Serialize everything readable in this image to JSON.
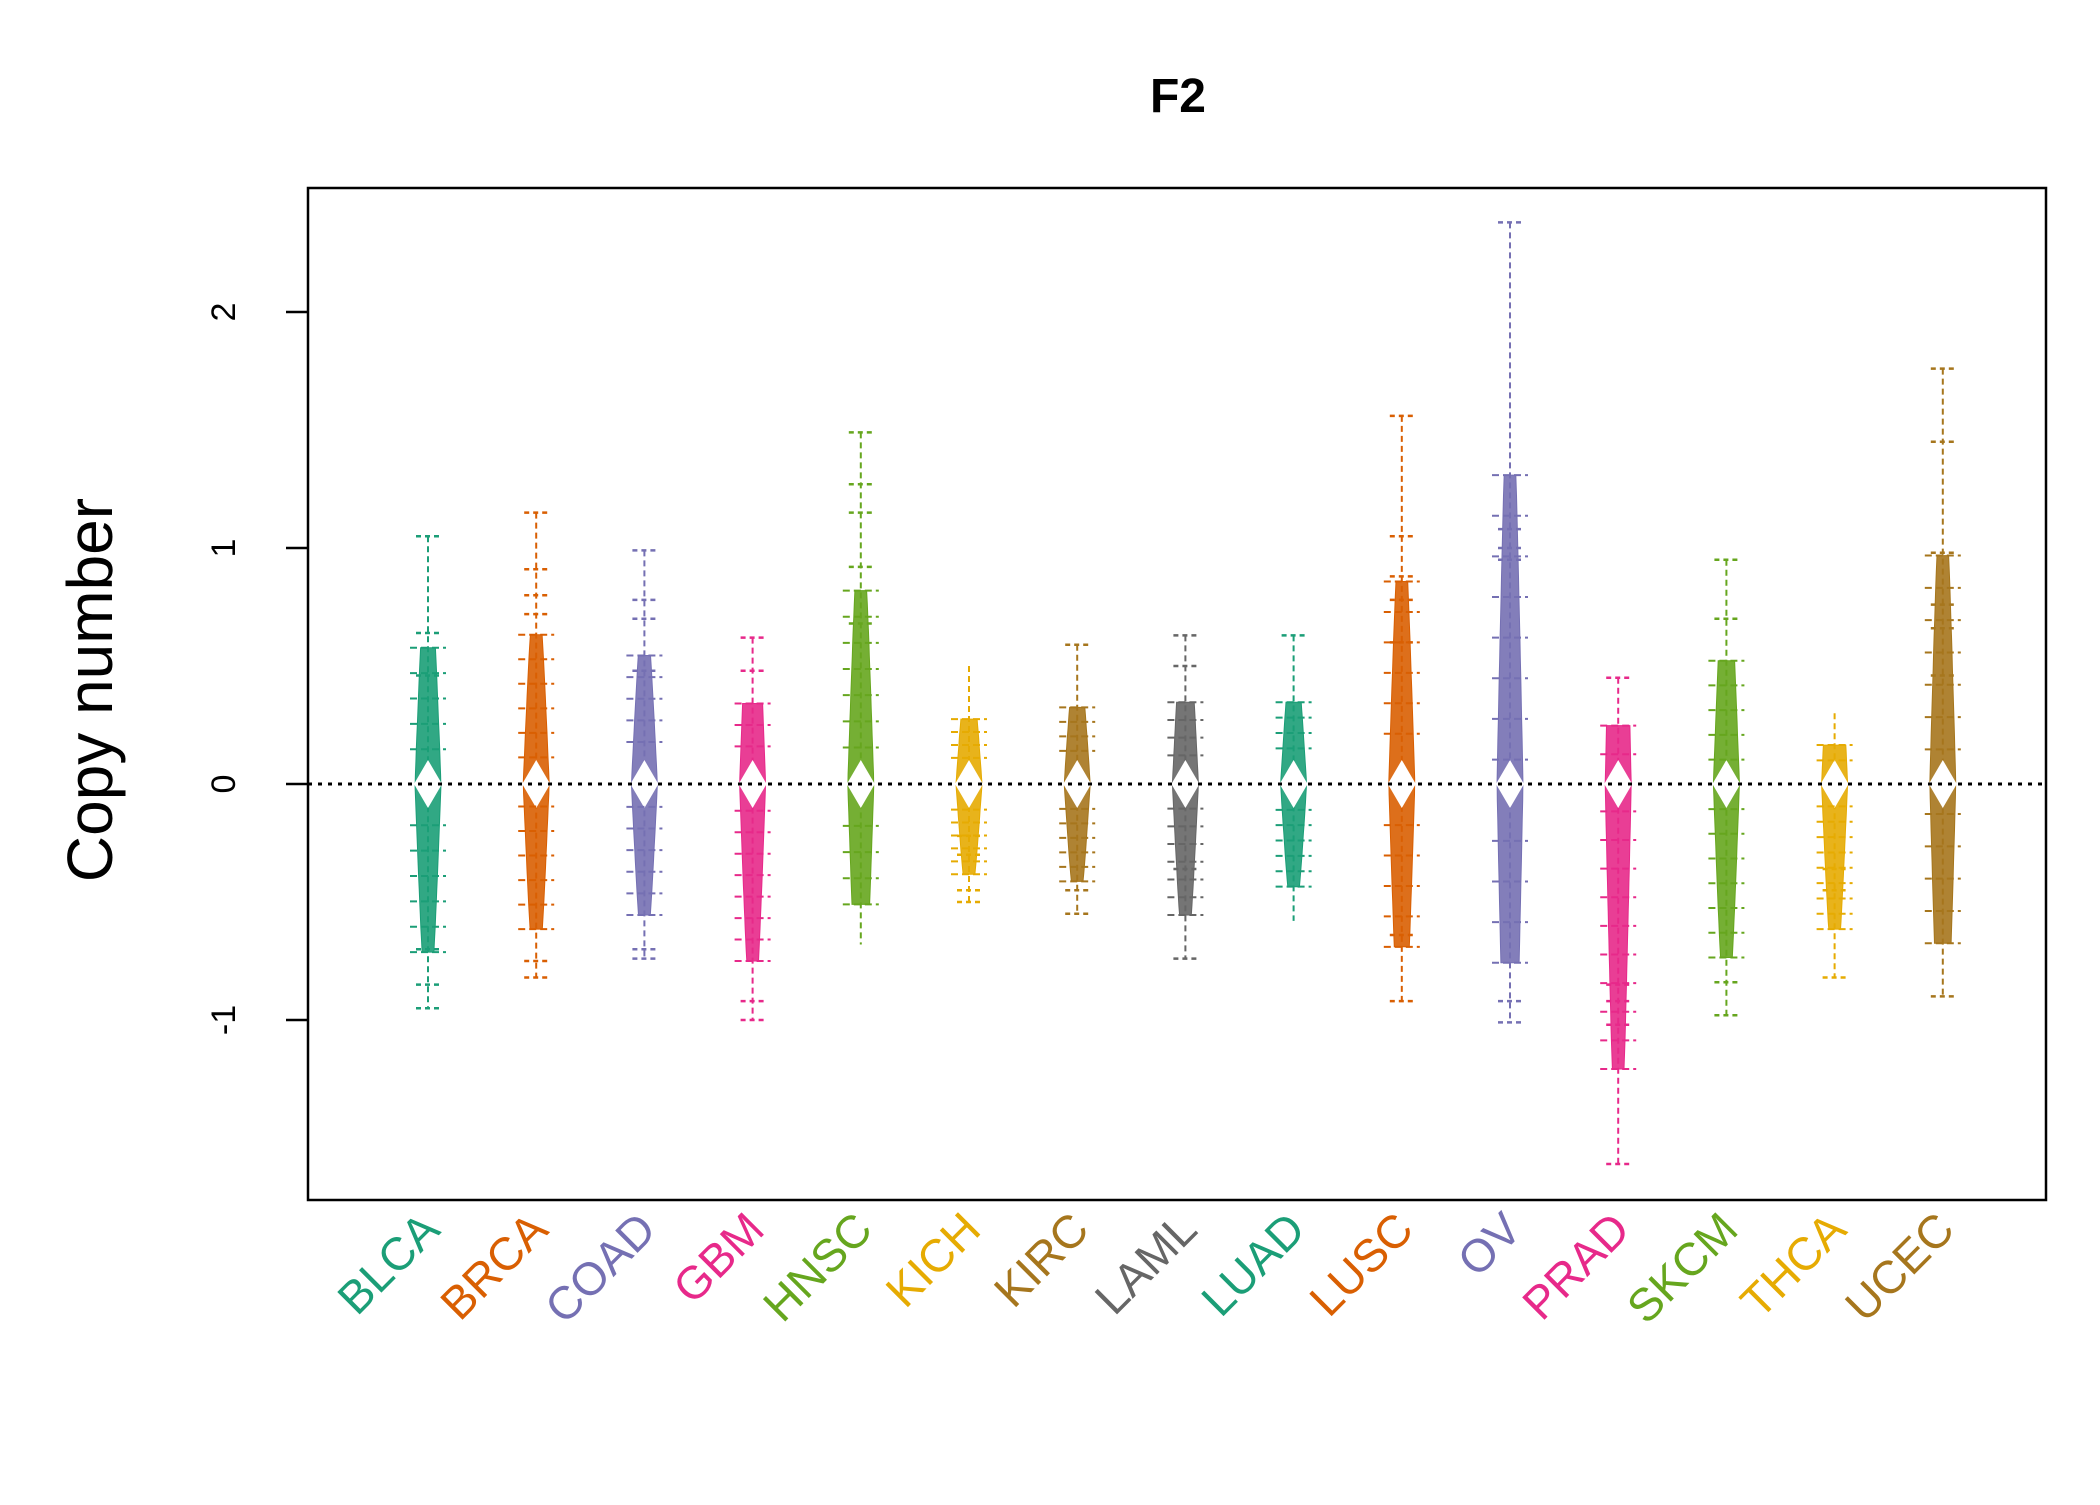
{
  "chart_data": {
    "type": "beanplot",
    "title": "F2",
    "xlabel": "",
    "ylabel": "Copy number",
    "ylim": [
      -1.75,
      2.55
    ],
    "yticks": [
      -1,
      0,
      1,
      2
    ],
    "ytick_labels": [
      "-1",
      "0",
      "1",
      "2"
    ],
    "reference_line": 0,
    "grid": false,
    "legend": "none",
    "categories": [
      "BLCA",
      "BRCA",
      "COAD",
      "GBM",
      "HNSC",
      "KICH",
      "KIRC",
      "LAML",
      "LUAD",
      "LUSC",
      "OV",
      "PRAD",
      "SKCM",
      "THCA",
      "UCEC"
    ],
    "colors": [
      "#1B9E77",
      "#D95F02",
      "#7570B3",
      "#E7298A",
      "#66A61E",
      "#E6AB02",
      "#A6761D",
      "#666666",
      "#1B9E77",
      "#D95F02",
      "#7570B3",
      "#E7298A",
      "#66A61E",
      "#E6AB02",
      "#A6761D"
    ],
    "series": [
      {
        "name": "BLCA",
        "min": -0.95,
        "max": 1.05,
        "outliers": [
          1.05,
          0.64,
          0.46,
          -0.7,
          -0.85,
          -0.95
        ]
      },
      {
        "name": "BRCA",
        "min": -0.82,
        "max": 1.15,
        "outliers": [
          1.15,
          0.91,
          0.8,
          0.72,
          -0.75,
          -0.82
        ]
      },
      {
        "name": "COAD",
        "min": -0.74,
        "max": 0.99,
        "outliers": [
          0.99,
          0.78,
          0.7,
          0.48,
          -0.7,
          -0.74
        ]
      },
      {
        "name": "GBM",
        "min": -1.0,
        "max": 0.62,
        "outliers": [
          0.62,
          0.48,
          -0.92,
          -1.0
        ]
      },
      {
        "name": "HNSC",
        "min": -0.68,
        "max": 1.49,
        "outliers": [
          1.49,
          1.27,
          1.15,
          0.92,
          0.68
        ]
      },
      {
        "name": "KICH",
        "min": -0.51,
        "max": 0.5,
        "outliers": [
          -0.22,
          -0.3,
          -0.45,
          -0.5
        ]
      },
      {
        "name": "KIRC",
        "min": -0.55,
        "max": 0.59,
        "outliers": [
          0.59,
          -0.45,
          -0.55
        ]
      },
      {
        "name": "LAML",
        "min": -0.74,
        "max": 0.63,
        "outliers": [
          0.63,
          0.5,
          -0.36,
          -0.74
        ]
      },
      {
        "name": "LUAD",
        "min": -0.58,
        "max": 0.63,
        "outliers": [
          0.63
        ]
      },
      {
        "name": "LUSC",
        "min": -0.92,
        "max": 1.56,
        "outliers": [
          1.56,
          1.05,
          0.88,
          0.78,
          0.6,
          -0.64,
          -0.92
        ]
      },
      {
        "name": "OV",
        "min": -1.01,
        "max": 2.38,
        "outliers": [
          2.38,
          1.08,
          1.0,
          0.95,
          -0.92,
          -1.01
        ]
      },
      {
        "name": "PRAD",
        "min": -1.61,
        "max": 0.45,
        "outliers": [
          0.45,
          -0.85,
          -0.92,
          -1.02,
          -1.61
        ]
      },
      {
        "name": "SKCM",
        "min": -0.98,
        "max": 0.95,
        "outliers": [
          0.95,
          0.7,
          -0.84,
          -0.98
        ]
      },
      {
        "name": "THCA",
        "min": -0.82,
        "max": 0.3,
        "outliers": [
          -0.36,
          -0.45,
          -0.82
        ]
      },
      {
        "name": "UCEC",
        "min": -0.9,
        "max": 1.76,
        "outliers": [
          1.76,
          1.45,
          0.98,
          0.76,
          0.66,
          0.46,
          -0.9
        ]
      }
    ]
  }
}
